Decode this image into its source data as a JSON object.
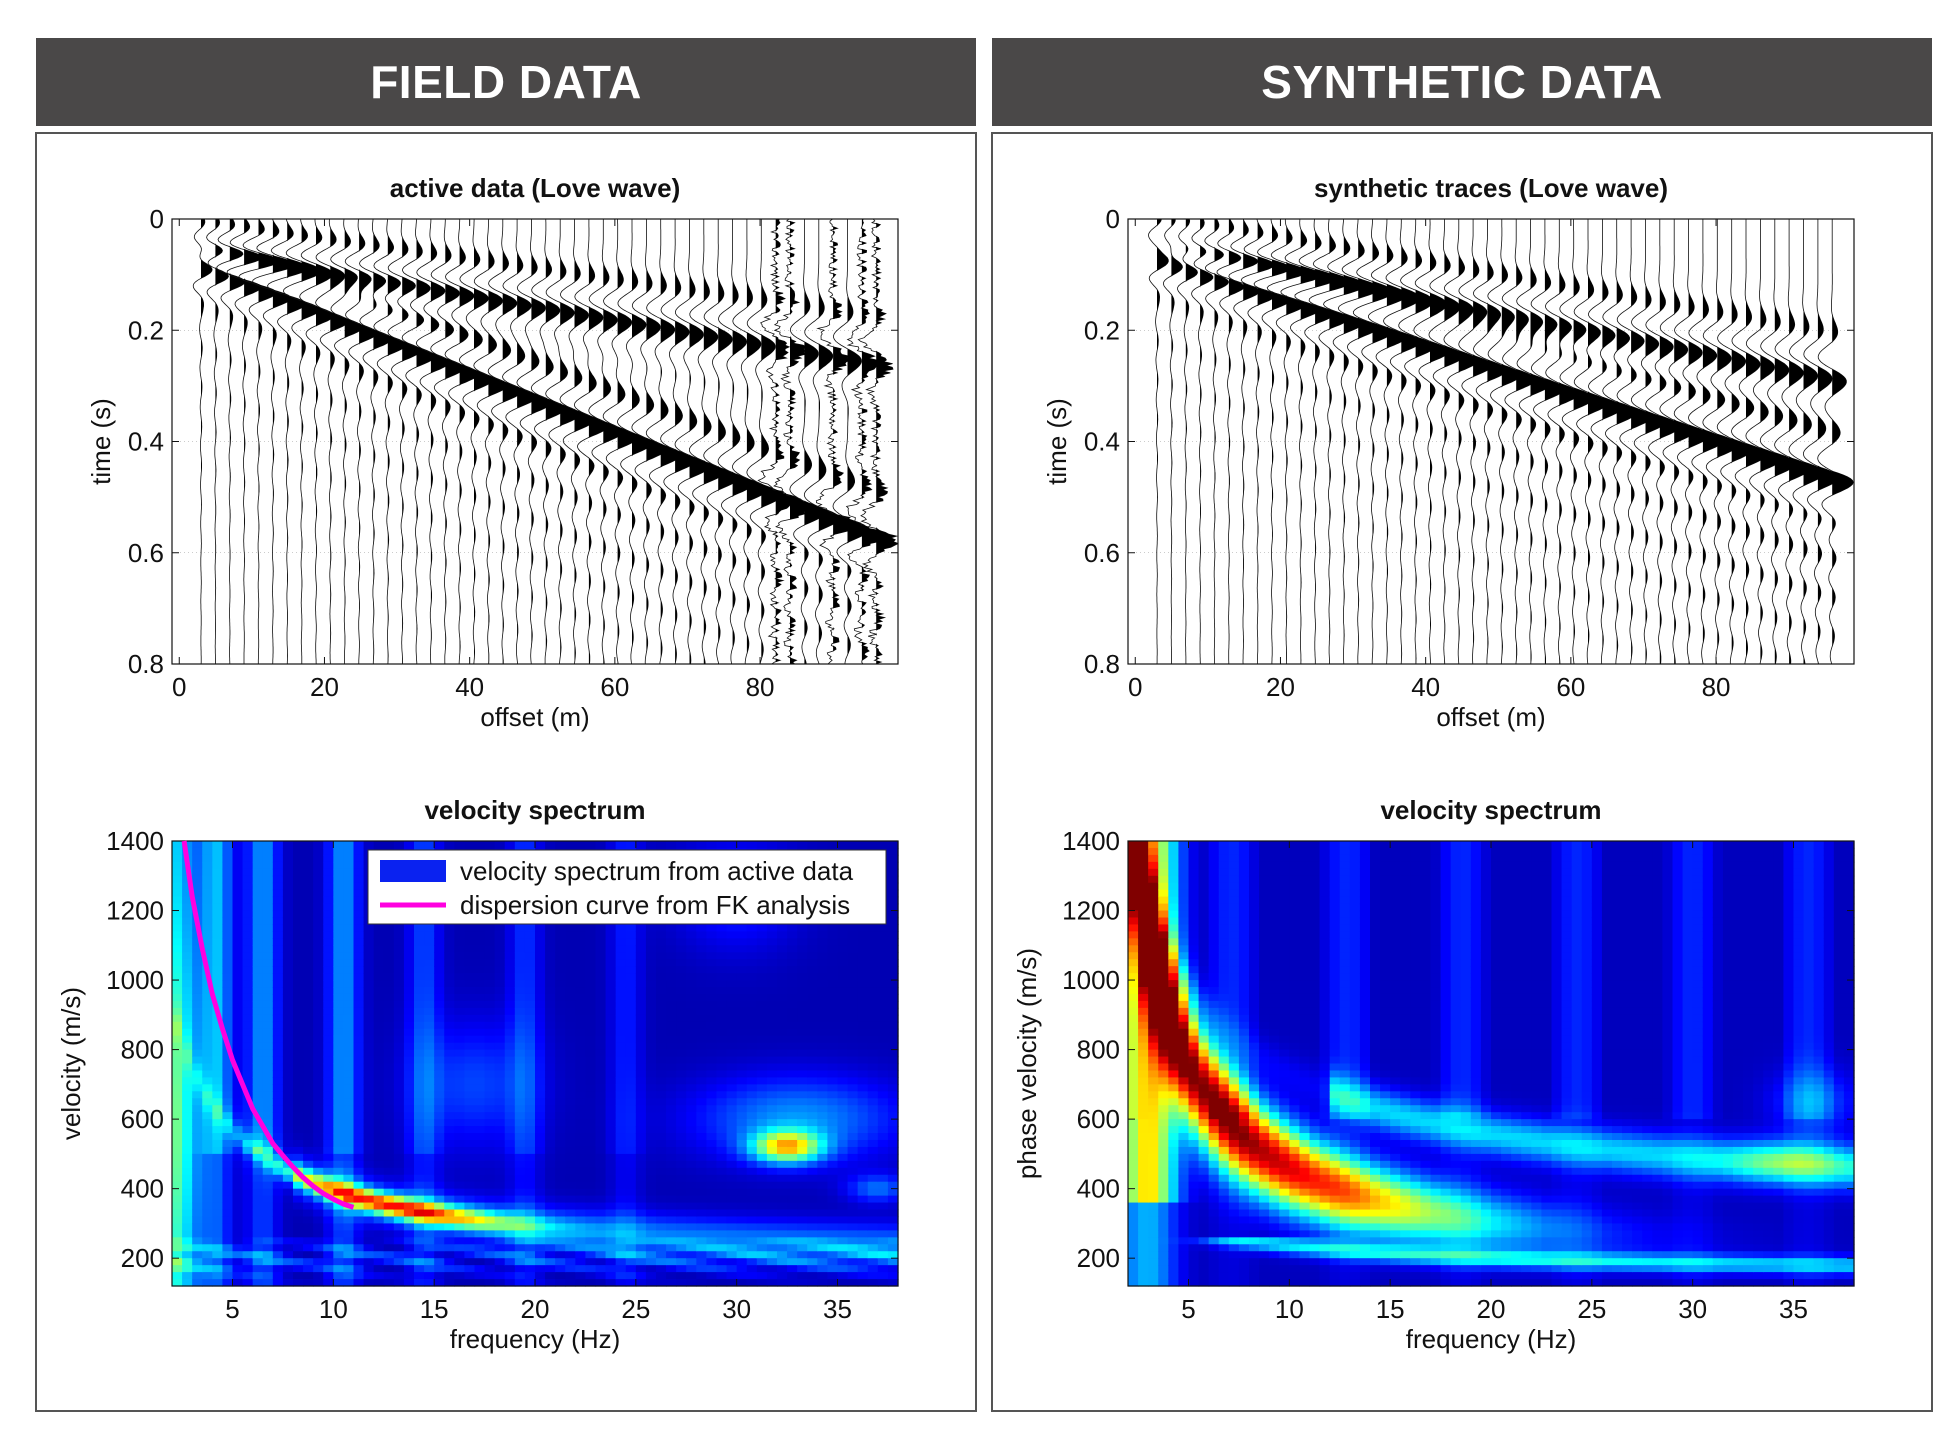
{
  "headers": {
    "left": "FIELD DATA",
    "right": "SYNTHETIC DATA"
  },
  "chart_data": [
    {
      "id": "field-traces",
      "type": "seismic-wiggle",
      "title": "active data (Love wave)",
      "xlabel": "offset (m)",
      "ylabel": "time (s)",
      "xlim": [
        -1,
        99
      ],
      "ylim": [
        0.8,
        0
      ],
      "xticks": [
        0,
        20,
        40,
        60,
        80
      ],
      "yticks": [
        0,
        0.2,
        0.4,
        0.6,
        0.8
      ],
      "yticklabels": [
        "0",
        "0.2",
        "0.4",
        "0.6",
        "0.8"
      ],
      "trace_offsets_start": 3,
      "trace_offsets_end": 96,
      "trace_count": 48,
      "arrivals": [
        {
          "name": "fast",
          "t0": 0.04,
          "slope": 0.0021
        },
        {
          "name": "slow",
          "t0": 0.06,
          "slope": 0.0052
        }
      ],
      "noise_offsets": [
        83,
        90,
        95
      ]
    },
    {
      "id": "synthetic-traces",
      "type": "seismic-wiggle",
      "title": "synthetic traces (Love wave)",
      "xlabel": "offset (m)",
      "ylabel": "time (s)",
      "xlim": [
        -1,
        99
      ],
      "ylim": [
        0.8,
        0
      ],
      "xticks": [
        0,
        20,
        40,
        60,
        80
      ],
      "yticks": [
        0,
        0.2,
        0.4,
        0.6,
        0.8
      ],
      "yticklabels": [
        "0",
        "0.2",
        "0.4",
        "0.6",
        "0.8"
      ],
      "trace_offsets_start": 3,
      "trace_offsets_end": 96,
      "trace_count": 48,
      "arrivals": [
        {
          "name": "fast",
          "t0": 0.03,
          "slope": 0.0025
        },
        {
          "name": "slow",
          "t0": 0.05,
          "slope": 0.0042
        }
      ],
      "noise_offsets": []
    },
    {
      "id": "field-spectrum",
      "type": "heatmap",
      "title": "velocity spectrum",
      "xlabel": "frequency (Hz)",
      "ylabel": "velocity (m/s)",
      "xlim": [
        2,
        38
      ],
      "ylim": [
        120,
        1400
      ],
      "xticks": [
        5,
        10,
        15,
        20,
        25,
        30,
        35
      ],
      "yticks": [
        200,
        400,
        600,
        800,
        1000,
        1200,
        1400
      ],
      "colormap": "jet",
      "legend": [
        {
          "label": "velocity spectrum from active data",
          "color": "#0a22f0",
          "kind": "patch"
        },
        {
          "label": "dispersion curve from FK analysis",
          "color": "#ff00e0",
          "kind": "line"
        }
      ],
      "dispersion_curve": {
        "frequency": [
          2.6,
          3,
          3.5,
          4,
          4.5,
          5,
          5.5,
          6,
          6.5,
          7,
          7.5,
          8,
          8.5,
          9,
          9.5,
          10,
          10.5,
          11
        ],
        "velocity": [
          1400,
          1240,
          1090,
          960,
          860,
          770,
          700,
          630,
          580,
          530,
          495,
          462,
          432,
          407,
          386,
          370,
          356,
          346
        ]
      }
    },
    {
      "id": "synthetic-spectrum",
      "type": "heatmap",
      "title": "velocity spectrum",
      "xlabel": "frequency (Hz)",
      "ylabel": "phase velocity (m/s)",
      "xlim": [
        2,
        38
      ],
      "ylim": [
        120,
        1400
      ],
      "xticks": [
        5,
        10,
        15,
        20,
        25,
        30,
        35
      ],
      "yticks": [
        200,
        400,
        600,
        800,
        1000,
        1200,
        1400
      ],
      "colormap": "jet"
    }
  ]
}
